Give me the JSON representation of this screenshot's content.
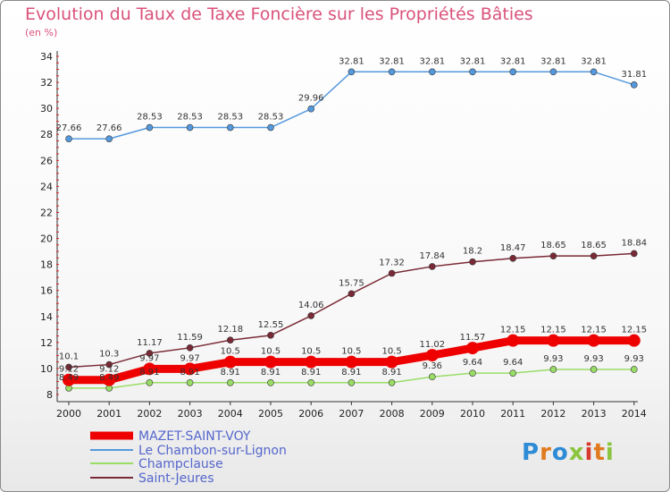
{
  "title": "Evolution du Taux de Taxe Foncière sur les Propriétés Bâties",
  "subtitle": "(en %)",
  "logo": {
    "text": "Proxiti",
    "colors": [
      "#2e8bd6",
      "#e07a1f",
      "#2e8bd6",
      "#8bc53f",
      "#d63a2e",
      "#e07a1f",
      "#8bc53f"
    ]
  },
  "chart_data": {
    "type": "line",
    "ylim": [
      8,
      34
    ],
    "yticks": [
      8,
      10,
      12,
      14,
      16,
      18,
      20,
      22,
      24,
      26,
      28,
      30,
      32,
      34
    ],
    "x": [
      "2000",
      "2001",
      "2002",
      "2003",
      "2004",
      "2005",
      "2006",
      "2007",
      "2008",
      "2009",
      "2010",
      "2011",
      "2012",
      "2013",
      "2014"
    ],
    "grid": false,
    "legend": "bottom-left",
    "series": [
      {
        "name": "MAZET-SAINT-VOY",
        "color": "#ee0000",
        "width": 9,
        "values": [
          9.12,
          9.12,
          9.97,
          9.97,
          10.5,
          10.5,
          10.5,
          10.5,
          10.5,
          11.02,
          11.57,
          12.15,
          12.15,
          12.15,
          12.15
        ],
        "labels": [
          "9.12",
          "9.12",
          "9.97",
          "9.97",
          "10.5",
          "10.5",
          "10.5",
          "10.5",
          "10.5",
          "11.02",
          "11.57",
          "12.15",
          "12.15",
          "12.15",
          "12.15"
        ]
      },
      {
        "name": "Le Chambon-sur-Lignon",
        "color": "#5599dd",
        "width": 1.5,
        "values": [
          27.66,
          27.66,
          28.53,
          28.53,
          28.53,
          28.53,
          29.96,
          32.81,
          32.81,
          32.81,
          32.81,
          32.81,
          32.81,
          32.81,
          31.81
        ],
        "labels": [
          "27.66",
          "27.66",
          "28.53",
          "28.53",
          "28.53",
          "28.53",
          "29.96",
          "32.81",
          "32.81",
          "32.81",
          "32.81",
          "32.81",
          "32.81",
          "32.81",
          "31.81"
        ]
      },
      {
        "name": "Champclause",
        "color": "#99dd66",
        "width": 1.5,
        "values": [
          8.49,
          8.49,
          8.91,
          8.91,
          8.91,
          8.91,
          8.91,
          8.91,
          8.91,
          9.36,
          9.64,
          9.64,
          9.93,
          9.93,
          9.93
        ],
        "labels": [
          "8.49",
          "8.49",
          "8.91",
          "8.91",
          "8.91",
          "8.91",
          "8.91",
          "8.91",
          "8.91",
          "9.36",
          "9.64",
          "9.64",
          "9.93",
          "9.93",
          "9.93"
        ]
      },
      {
        "name": "Saint-Jeures",
        "color": "#7a2a36",
        "width": 1.5,
        "values": [
          10.1,
          10.3,
          11.17,
          11.59,
          12.18,
          12.55,
          14.06,
          15.75,
          17.32,
          17.84,
          18.2,
          18.47,
          18.65,
          18.65,
          18.84
        ],
        "labels": [
          "10.1",
          "10.3",
          "11.17",
          "11.59",
          "12.18",
          "12.55",
          "14.06",
          "15.75",
          "17.32",
          "17.84",
          "18.2",
          "18.47",
          "18.65",
          "18.65",
          "18.84"
        ]
      }
    ]
  }
}
